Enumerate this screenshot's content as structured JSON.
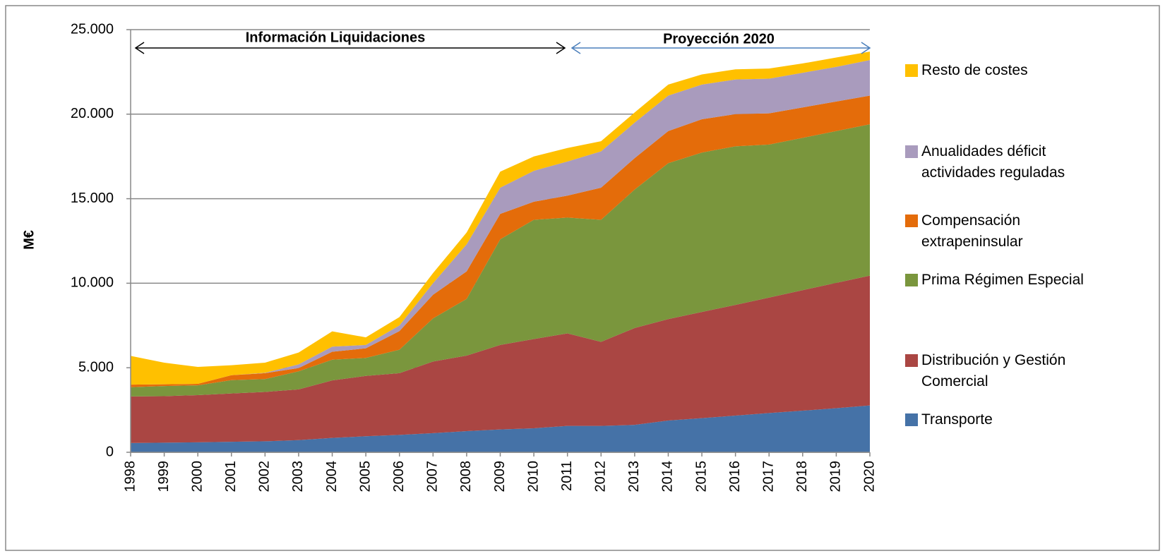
{
  "chart_data": {
    "type": "stacked_area",
    "y_label": "M€",
    "annotations": [
      "Información Liquidaciones",
      "Proyección 2020"
    ],
    "categories": [
      "1998",
      "1999",
      "2000",
      "2001",
      "2002",
      "2003",
      "2004",
      "2005",
      "2006",
      "2007",
      "2008",
      "2009",
      "2010",
      "2011",
      "2012",
      "2013",
      "2014",
      "2015",
      "2016",
      "2017",
      "2018",
      "2019",
      "2020"
    ],
    "series": [
      {
        "name": "Transporte",
        "color": "#4572a7",
        "values": [
          550,
          570,
          590,
          620,
          650,
          720,
          850,
          950,
          1030,
          1130,
          1250,
          1350,
          1420,
          1560,
          1560,
          1620,
          1880,
          2020,
          2170,
          2320,
          2460,
          2610,
          2770
        ]
      },
      {
        "name": "Distribución y Gestión Comercial",
        "color": "#aa4643",
        "values": [
          2750,
          2750,
          2790,
          2860,
          2920,
          3000,
          3400,
          3570,
          3650,
          4240,
          4470,
          5000,
          5280,
          5470,
          4970,
          5730,
          6000,
          6280,
          6550,
          6830,
          7130,
          7410,
          7680
        ]
      },
      {
        "name": "Prima Régimen Especial",
        "color": "#7a963d",
        "values": [
          550,
          600,
          580,
          790,
          760,
          1070,
          1230,
          1060,
          1390,
          2550,
          3350,
          6250,
          7050,
          6850,
          7220,
          8190,
          9220,
          9430,
          9380,
          9050,
          9010,
          8980,
          8950
        ]
      },
      {
        "name": "Compensación extrapeninsular",
        "color": "#e46c0a",
        "values": [
          150,
          100,
          90,
          290,
          350,
          190,
          470,
          570,
          1100,
          1400,
          1630,
          1500,
          1070,
          1300,
          1900,
          1860,
          1900,
          1970,
          1900,
          1850,
          1800,
          1750,
          1700
        ]
      },
      {
        "name": "Anualidades déficit actividades reguladas",
        "color": "#a99bbd",
        "values": [
          0,
          0,
          0,
          0,
          20,
          220,
          300,
          200,
          330,
          680,
          1600,
          1550,
          1830,
          2020,
          2150,
          2100,
          2100,
          2050,
          2050,
          2050,
          2050,
          2050,
          2100
        ]
      },
      {
        "name": "Resto de costes",
        "color": "#ffc000",
        "values": [
          1700,
          1280,
          1000,
          590,
          600,
          700,
          900,
          450,
          500,
          600,
          700,
          950,
          850,
          800,
          600,
          600,
          650,
          600,
          600,
          600,
          550,
          550,
          500
        ]
      }
    ],
    "ylim": [
      0,
      25000
    ],
    "yticks": [
      0,
      {
        "value": 5000,
        "label": "5.000"
      },
      {
        "value": 10000,
        "label": "10.000"
      },
      {
        "value": 15000,
        "label": "15.000"
      },
      {
        "value": 20000,
        "label": "20.000"
      },
      {
        "value": 25000,
        "label": "25.000"
      }
    ],
    "grid": true,
    "legend": "right"
  }
}
